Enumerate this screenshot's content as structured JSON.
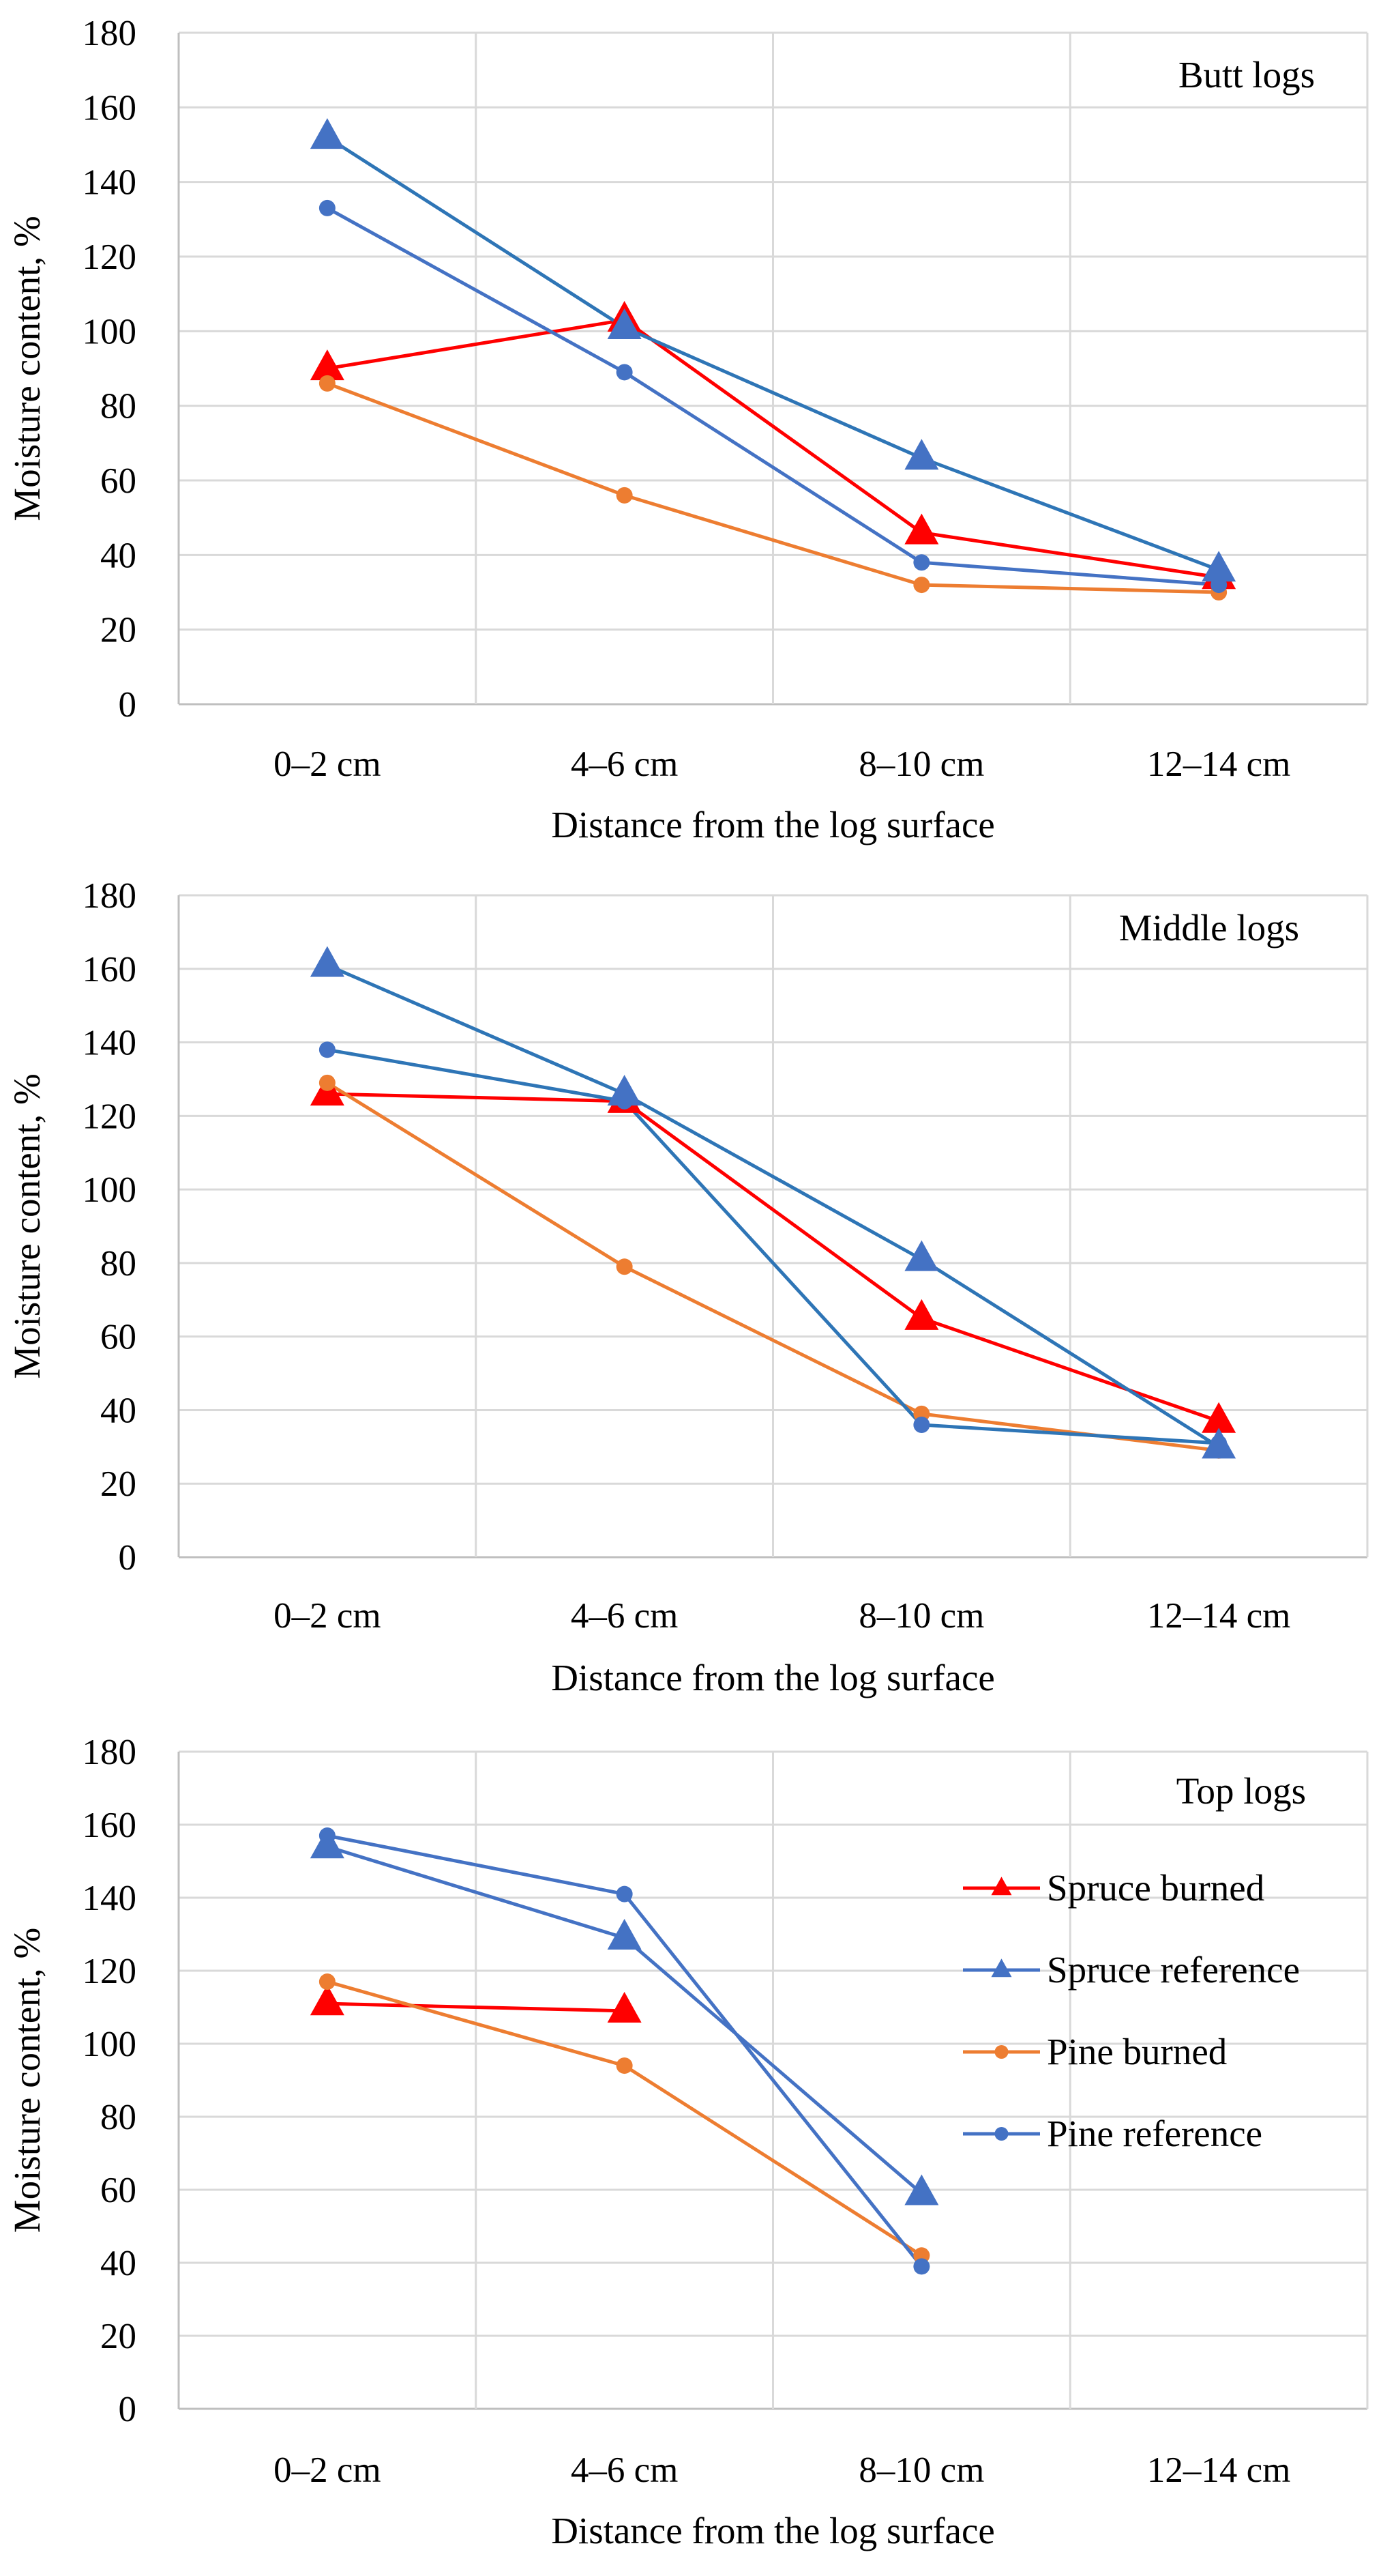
{
  "chart_data": [
    {
      "type": "line",
      "title": "Butt logs",
      "xlabel": "Distance from the log surface",
      "ylabel": "Moisture content, %",
      "categories": [
        "0–2 cm",
        "4–6 cm",
        "8–10 cm",
        "12–14 cm"
      ],
      "ylim": [
        0,
        180
      ],
      "yticks": [
        0,
        20,
        40,
        60,
        80,
        100,
        120,
        140,
        160,
        180
      ],
      "grid": true,
      "series": [
        {
          "name": "Spruce burned",
          "marker": "triangle",
          "color": "#ff0000",
          "values": [
            90,
            103,
            46,
            34
          ]
        },
        {
          "name": "Spruce reference",
          "marker": "triangle",
          "color": "#4472c4",
          "line_color": "#2e75b6",
          "values": [
            152,
            101,
            66,
            36
          ]
        },
        {
          "name": "Pine burned",
          "marker": "circle",
          "color": "#ed7d31",
          "values": [
            86,
            56,
            32,
            30
          ]
        },
        {
          "name": "Pine reference",
          "marker": "circle",
          "color": "#4472c4",
          "values": [
            133,
            89,
            38,
            32
          ]
        }
      ]
    },
    {
      "type": "line",
      "title": "Middle logs",
      "xlabel": "Distance from the log surface",
      "ylabel": "Moisture content, %",
      "categories": [
        "0–2 cm",
        "4–6 cm",
        "8–10 cm",
        "12–14 cm"
      ],
      "ylim": [
        0,
        180
      ],
      "yticks": [
        0,
        20,
        40,
        60,
        80,
        100,
        120,
        140,
        160,
        180
      ],
      "grid": true,
      "series": [
        {
          "name": "Spruce burned",
          "marker": "triangle",
          "color": "#ff0000",
          "values": [
            126,
            124,
            65,
            37
          ]
        },
        {
          "name": "Spruce reference",
          "marker": "triangle",
          "color": "#4472c4",
          "line_color": "#2e75b6",
          "values": [
            161,
            126,
            81,
            30
          ]
        },
        {
          "name": "Pine burned",
          "marker": "circle",
          "color": "#ed7d31",
          "values": [
            129,
            79,
            39,
            29
          ]
        },
        {
          "name": "Pine reference",
          "marker": "circle",
          "color": "#4472c4",
          "line_color": "#2e75b6",
          "values": [
            138,
            124,
            36,
            31
          ]
        }
      ]
    },
    {
      "type": "line",
      "title": "Top logs",
      "xlabel": "Distance from the log surface",
      "ylabel": "Moisture content, %",
      "categories": [
        "0–2 cm",
        "4–6 cm",
        "8–10 cm",
        "12–14 cm"
      ],
      "ylim": [
        0,
        180
      ],
      "yticks": [
        0,
        20,
        40,
        60,
        80,
        100,
        120,
        140,
        160,
        180
      ],
      "grid": true,
      "legend": "right",
      "series": [
        {
          "name": "Spruce burned",
          "marker": "triangle",
          "color": "#ff0000",
          "values": [
            111,
            109,
            null,
            null
          ]
        },
        {
          "name": "Spruce reference",
          "marker": "triangle",
          "color": "#4472c4",
          "values": [
            154,
            129,
            59,
            null
          ]
        },
        {
          "name": "Pine burned",
          "marker": "circle",
          "color": "#ed7d31",
          "values": [
            117,
            94,
            42,
            null
          ]
        },
        {
          "name": "Pine reference",
          "marker": "circle",
          "color": "#4472c4",
          "values": [
            157,
            141,
            39,
            null
          ]
        }
      ]
    }
  ]
}
